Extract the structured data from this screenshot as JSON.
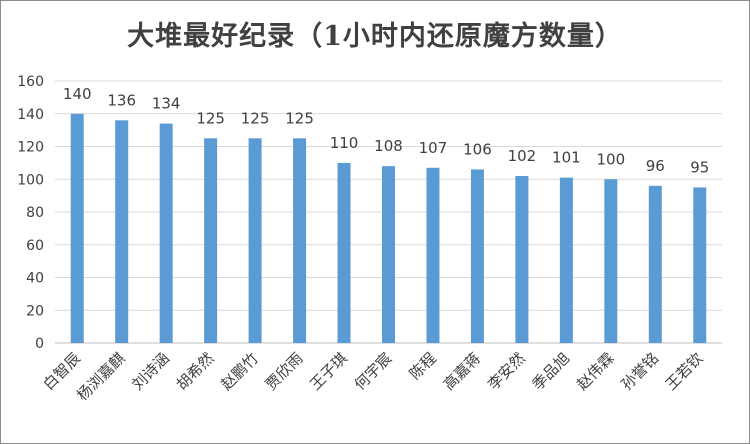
{
  "chart_data": {
    "type": "bar",
    "title": "大堆最好纪录（1小时内还原魔方数量）",
    "xlabel": "",
    "ylabel": "",
    "ylim": [
      0,
      160
    ],
    "yticks": [
      0,
      20,
      40,
      60,
      80,
      100,
      120,
      140,
      160
    ],
    "grid": true,
    "legend": "none",
    "bar_color": "#5b9bd5",
    "categories": [
      "白智辰",
      "杨浏嘉麒",
      "刘诗涵",
      "胡希然",
      "赵鹏竹",
      "贾欣雨",
      "王子琪",
      "何宇宸",
      "陈程",
      "高嘉蒋",
      "李安然",
      "季品旭",
      "赵伟霖",
      "孙誉铭",
      "王若钦"
    ],
    "values": [
      140,
      136,
      134,
      125,
      125,
      125,
      110,
      108,
      107,
      106,
      102,
      101,
      100,
      96,
      95
    ],
    "data_labels": [
      "140",
      "136",
      "134",
      "125",
      "125",
      "125",
      "110",
      "108",
      "107",
      "106",
      "102",
      "101",
      "100",
      "96",
      "95"
    ]
  }
}
